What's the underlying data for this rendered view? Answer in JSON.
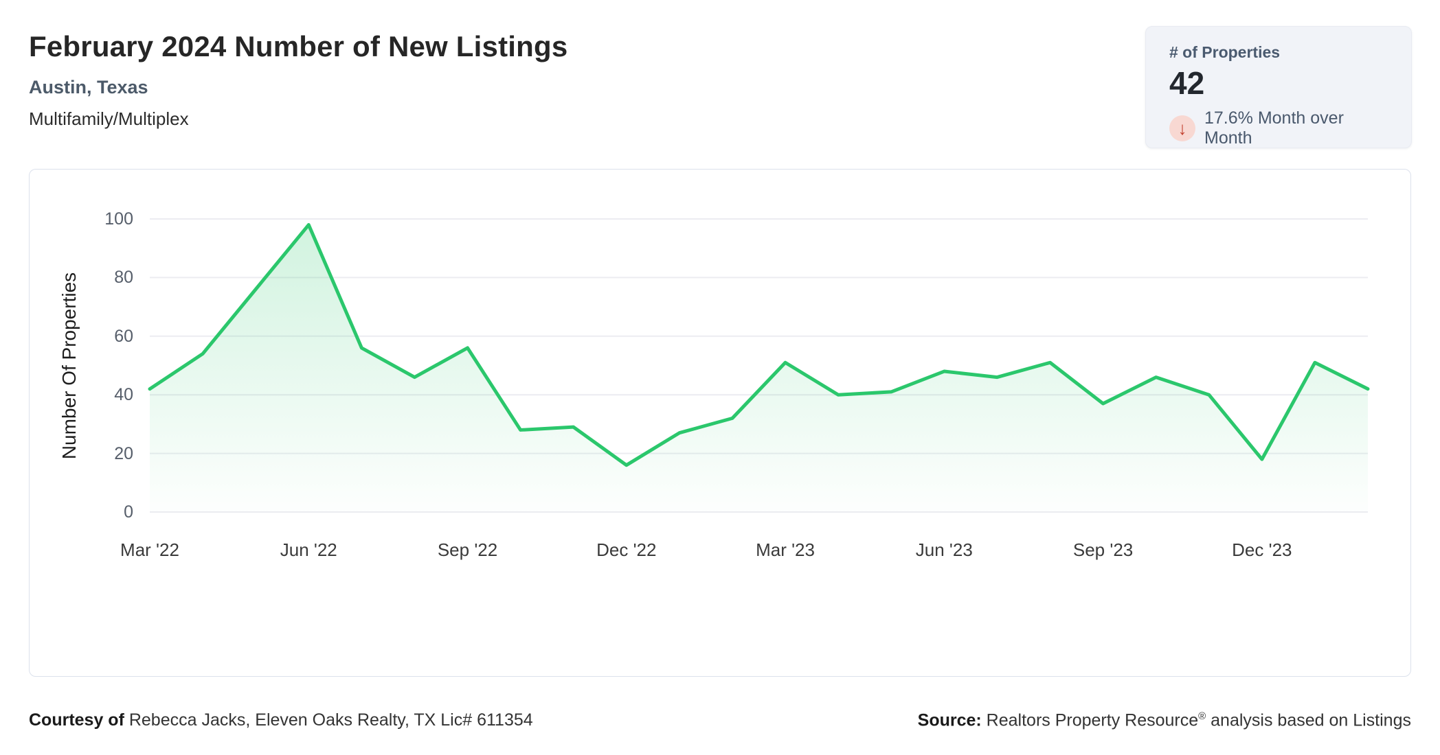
{
  "header": {
    "title": "February 2024 Number of New Listings",
    "subtitle": "Austin, Texas",
    "category": "Multifamily/Multiplex"
  },
  "stat_card": {
    "label": "# of Properties",
    "value": "42",
    "change_direction": "down",
    "arrow_glyph": "↓",
    "change_text": "17.6% Month over Month",
    "arrow_color": "#c2402e",
    "arrow_bg_color": "#f8d8d2"
  },
  "chart_data": {
    "type": "area",
    "title": "February 2024 Number of New Listings",
    "x": [
      "Mar '22",
      "Apr '22",
      "May '22",
      "Jun '22",
      "Jul '22",
      "Aug '22",
      "Sep '22",
      "Oct '22",
      "Nov '22",
      "Dec '22",
      "Jan '23",
      "Feb '23",
      "Mar '23",
      "Apr '23",
      "May '23",
      "Jun '23",
      "Jul '23",
      "Aug '23",
      "Sep '23",
      "Oct '23",
      "Nov '23",
      "Dec '23",
      "Jan '24",
      "Feb '24"
    ],
    "values": [
      42,
      54,
      76,
      98,
      56,
      46,
      56,
      28,
      29,
      16,
      27,
      32,
      51,
      40,
      41,
      48,
      46,
      51,
      37,
      46,
      40,
      18,
      51,
      42
    ],
    "x_tick_labels": [
      "Mar '22",
      "Jun '22",
      "Sep '22",
      "Dec '22",
      "Mar '23",
      "Jun '23",
      "Sep '23",
      "Dec '23"
    ],
    "y_ticks": [
      0,
      20,
      40,
      60,
      80,
      100
    ],
    "ylim": [
      0,
      100
    ],
    "ylabel": "Number Of Properties",
    "xlabel": "",
    "grid": "horizontal",
    "legend": "none",
    "line_color": "#2bc76c",
    "fill_color": "#2bc76c",
    "grid_color": "#ececf1"
  },
  "footer": {
    "courtesy_label": "Courtesy of",
    "courtesy_text": " Rebecca Jacks, Eleven Oaks Realty, TX Lic# 611354",
    "source_label": "Source:",
    "source_text_before_reg": " Realtors Property Resource",
    "source_reg": "®",
    "source_text_after_reg": " analysis based on Listings"
  }
}
